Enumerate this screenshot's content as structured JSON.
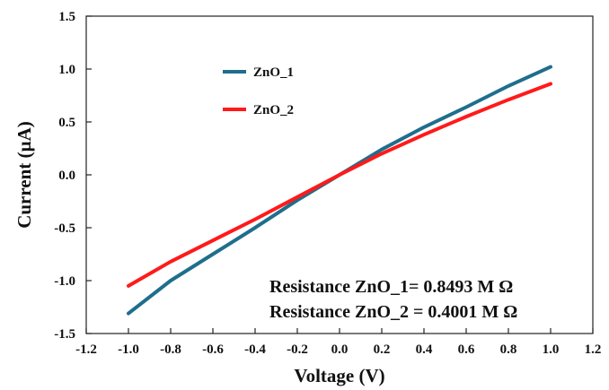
{
  "chart_data": {
    "type": "line",
    "xlabel": "Voltage (V)",
    "ylabel": "Current (µA)",
    "xlim": [
      -1.2,
      1.2
    ],
    "ylim": [
      -1.5,
      1.5
    ],
    "x_ticks": [
      -1.2,
      -1.0,
      -0.8,
      -0.6,
      -0.4,
      -0.2,
      0.0,
      0.2,
      0.4,
      0.6,
      0.8,
      1.0,
      1.2
    ],
    "x_tick_labels": [
      "-1.2",
      "-1.0",
      "-0.8",
      "-0.6",
      "-0.4",
      "-0.2",
      "0.0",
      "0.2",
      "0.4",
      "0.6",
      "0.8",
      "1.0",
      "1.2"
    ],
    "y_ticks": [
      -1.5,
      -1.0,
      -0.5,
      0.0,
      0.5,
      1.0,
      1.5
    ],
    "y_tick_labels": [
      "-1.5",
      "-1.0",
      "-0.5",
      "0.0",
      "0.5",
      "1.0",
      "1.5"
    ],
    "grid": false,
    "legend_position": "top-left",
    "series": [
      {
        "name": "ZnO_1",
        "color": "#1f6e8c",
        "x": [
          -1.0,
          -0.8,
          -0.6,
          -0.4,
          -0.2,
          0.0,
          0.2,
          0.4,
          0.6,
          0.8,
          1.0
        ],
        "y": [
          -1.31,
          -1.0,
          -0.75,
          -0.5,
          -0.24,
          0.0,
          0.24,
          0.45,
          0.64,
          0.84,
          1.02
        ]
      },
      {
        "name": "ZnO_2",
        "color": "#ff1a1a",
        "x": [
          -1.0,
          -0.8,
          -0.6,
          -0.4,
          -0.2,
          0.0,
          0.2,
          0.4,
          0.6,
          0.8,
          1.0
        ],
        "y": [
          -1.05,
          -0.82,
          -0.62,
          -0.42,
          -0.21,
          0.0,
          0.2,
          0.38,
          0.55,
          0.71,
          0.86
        ]
      }
    ],
    "annotations": [
      "Resistance ZnO_1= 0.8493 M Ω",
      "Resistance ZnO_2 = 0.4001 M Ω"
    ]
  }
}
